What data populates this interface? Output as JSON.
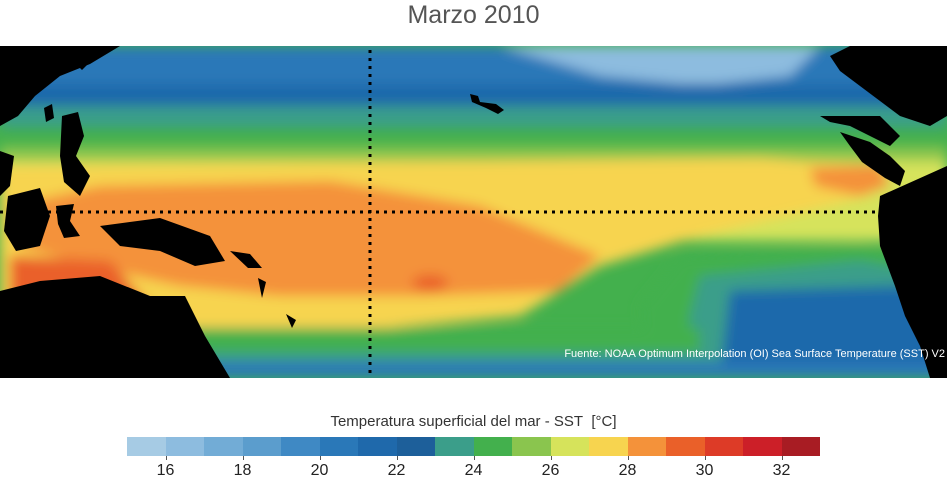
{
  "title": "Marzo 2010",
  "source_note": "Fuente: NOAA Optimum Interpolation (OI) Sea Surface Temperature (SST) V2",
  "legend": {
    "label": "Temperatura superficial del mar - SST",
    "unit": "[°C]",
    "bins": [
      {
        "from": 15,
        "to": 16,
        "color": "#a6cbe4"
      },
      {
        "from": 16,
        "to": 17,
        "color": "#8dbcdf"
      },
      {
        "from": 17,
        "to": 18,
        "color": "#72acd6"
      },
      {
        "from": 18,
        "to": 19,
        "color": "#5b9dcd"
      },
      {
        "from": 19,
        "to": 20,
        "color": "#3f89c4"
      },
      {
        "from": 20,
        "to": 21,
        "color": "#2a78b8"
      },
      {
        "from": 21,
        "to": 22,
        "color": "#1f69ab"
      },
      {
        "from": 22,
        "to": 23,
        "color": "#1d5f9a"
      },
      {
        "from": 23,
        "to": 24,
        "color": "#3b9e8a"
      },
      {
        "from": 24,
        "to": 25,
        "color": "#43b04d"
      },
      {
        "from": 25,
        "to": 26,
        "color": "#8ac54e"
      },
      {
        "from": 26,
        "to": 27,
        "color": "#d6e35b"
      },
      {
        "from": 27,
        "to": 28,
        "color": "#f7d44f"
      },
      {
        "from": 28,
        "to": 29,
        "color": "#f4923a"
      },
      {
        "from": 29,
        "to": 30,
        "color": "#ea6029"
      },
      {
        "from": 30,
        "to": 31,
        "color": "#dd3b27"
      },
      {
        "from": 31,
        "to": 32,
        "color": "#cc1f28"
      },
      {
        "from": 32,
        "to": 33,
        "color": "#a81c23"
      }
    ],
    "ticks": [
      16,
      18,
      20,
      22,
      24,
      26,
      28,
      30,
      32
    ]
  },
  "map": {
    "land_color": "#000000",
    "reference_lines": [
      "equator",
      "dateline"
    ]
  }
}
